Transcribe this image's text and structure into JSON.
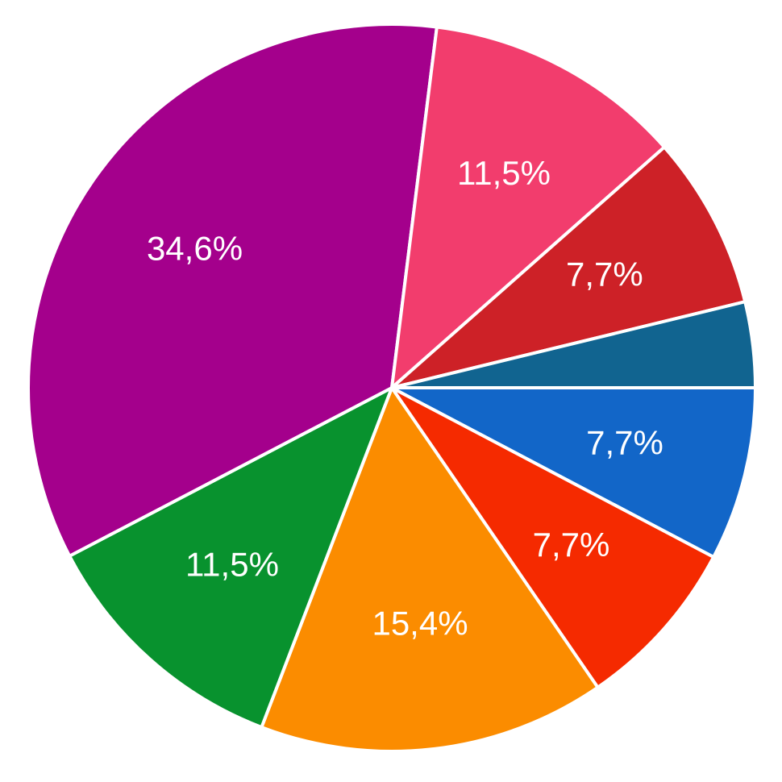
{
  "chart_data": {
    "type": "pie",
    "values": [
      7.7,
      7.7,
      15.4,
      11.5,
      34.6,
      11.5,
      7.7,
      3.8
    ],
    "value_labels": [
      "7,7%",
      "7,7%",
      "15,4%",
      "11,5%",
      "34,6%",
      "11,5%",
      "7,7%",
      null
    ],
    "colors": [
      "#1266c8",
      "#f52a00",
      "#fb8c00",
      "#08922e",
      "#a4008c",
      "#f23d6d",
      "#cd2127",
      "#116490"
    ],
    "start_angle": 0,
    "direction": "clockwise"
  }
}
